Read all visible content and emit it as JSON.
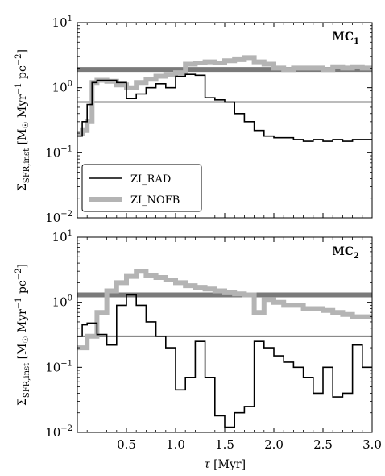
{
  "chart_data": [
    {
      "type": "line",
      "panel_label": "MC",
      "panel_label_sub": "1",
      "ylabel": "Σ",
      "ylabel_sub": "SFR,inst",
      "ylabel_units": "[M",
      "ylabel_units_rest": " Myr",
      "ylabel_exp1": "−1",
      "ylabel_pc": " pc",
      "ylabel_exp2": "−2",
      "ylabel_close": "]",
      "yscale": "log",
      "ylim": [
        0.01,
        10
      ],
      "xlim": [
        0,
        3
      ],
      "yticks": [
        {
          "value": 0.01,
          "base": "10",
          "exp": "−2"
        },
        {
          "value": 0.1,
          "base": "10",
          "exp": "−1"
        },
        {
          "value": 1,
          "base": "10",
          "exp": "0"
        },
        {
          "value": 10,
          "base": "10",
          "exp": "1"
        }
      ],
      "hlines": [
        {
          "value": 1.9,
          "color": "#7a7a7a"
        },
        {
          "value": 0.6,
          "color": "#7a7a7a"
        }
      ],
      "series": [
        {
          "name": "ZI_RAD",
          "color": "#000000",
          "x": [
            0.0,
            0.05,
            0.1,
            0.15,
            0.2,
            0.3,
            0.4,
            0.5,
            0.6,
            0.7,
            0.8,
            0.9,
            1.0,
            1.1,
            1.2,
            1.3,
            1.4,
            1.5,
            1.6,
            1.7,
            1.8,
            1.9,
            2.0,
            2.1,
            2.2,
            2.3,
            2.4,
            2.5,
            2.6,
            2.7,
            2.8,
            2.9
          ],
          "y": [
            0.18,
            0.3,
            0.55,
            1.2,
            1.3,
            1.3,
            1.2,
            0.68,
            0.8,
            1.0,
            1.15,
            1.0,
            1.5,
            1.6,
            1.55,
            0.7,
            0.65,
            0.6,
            0.4,
            0.3,
            0.22,
            0.18,
            0.17,
            0.17,
            0.16,
            0.15,
            0.16,
            0.15,
            0.16,
            0.15,
            0.16,
            0.16
          ]
        },
        {
          "name": "ZI_NOFB",
          "color": "#b4b4b4",
          "x": [
            0.0,
            0.05,
            0.1,
            0.15,
            0.2,
            0.3,
            0.4,
            0.5,
            0.6,
            0.7,
            0.8,
            0.9,
            1.0,
            1.1,
            1.2,
            1.3,
            1.4,
            1.5,
            1.6,
            1.7,
            1.8,
            1.9,
            2.0,
            2.1,
            2.2,
            2.3,
            2.4,
            2.5,
            2.6,
            2.7,
            2.8,
            2.9,
            3.0
          ],
          "y": [
            0.2,
            0.22,
            0.3,
            1.2,
            1.3,
            1.25,
            1.1,
            1.0,
            1.2,
            1.35,
            1.5,
            1.6,
            1.7,
            2.3,
            2.4,
            2.5,
            2.4,
            2.6,
            2.7,
            2.9,
            2.5,
            2.3,
            2.0,
            1.9,
            2.0,
            2.0,
            2.0,
            1.9,
            2.1,
            2.0,
            2.1,
            2.0,
            2.0
          ]
        }
      ],
      "legend": {
        "position": "lower-left",
        "items": [
          {
            "label": "ZI_RAD",
            "color": "#000000"
          },
          {
            "label": "ZI_NOFB",
            "color": "#b4b4b4"
          }
        ]
      }
    },
    {
      "type": "line",
      "panel_label": "MC",
      "panel_label_sub": "2",
      "ylabel": "Σ",
      "ylabel_sub": "SFR,inst",
      "ylabel_units": "[M",
      "ylabel_units_rest": " Myr",
      "ylabel_exp1": "−1",
      "ylabel_pc": " pc",
      "ylabel_exp2": "−2",
      "ylabel_close": "]",
      "xlabel": "τ",
      "xlabel_units": " [Myr]",
      "yscale": "log",
      "ylim": [
        0.01,
        10
      ],
      "xlim": [
        0,
        3
      ],
      "xticks": [
        "0.5",
        "1.0",
        "1.5",
        "2.0",
        "2.5",
        "3.0"
      ],
      "xtick_values": [
        0.5,
        1.0,
        1.5,
        2.0,
        2.5,
        3.0
      ],
      "yticks": [
        {
          "value": 0.01,
          "base": "10",
          "exp": "−2"
        },
        {
          "value": 0.1,
          "base": "10",
          "exp": "−1"
        },
        {
          "value": 1,
          "base": "10",
          "exp": "0"
        },
        {
          "value": 10,
          "base": "10",
          "exp": "1"
        }
      ],
      "hlines": [
        {
          "value": 1.3,
          "color": "#7a7a7a"
        },
        {
          "value": 0.3,
          "color": "#7a7a7a"
        }
      ],
      "series": [
        {
          "name": "ZI_RAD",
          "color": "#000000",
          "x": [
            0.0,
            0.05,
            0.1,
            0.2,
            0.3,
            0.4,
            0.5,
            0.6,
            0.7,
            0.8,
            0.9,
            1.0,
            1.1,
            1.2,
            1.3,
            1.4,
            1.5,
            1.6,
            1.7,
            1.8,
            1.9,
            2.0,
            2.1,
            2.2,
            2.3,
            2.4,
            2.5,
            2.6,
            2.7,
            2.8,
            2.9
          ],
          "y": [
            0.3,
            0.45,
            0.48,
            0.32,
            0.22,
            0.9,
            1.3,
            0.9,
            0.5,
            0.3,
            0.2,
            0.045,
            0.07,
            0.25,
            0.07,
            0.018,
            0.012,
            0.02,
            0.025,
            0.25,
            0.2,
            0.15,
            0.12,
            0.1,
            0.07,
            0.04,
            0.1,
            0.035,
            0.04,
            0.22,
            0.1
          ]
        },
        {
          "name": "ZI_NOFB",
          "color": "#b4b4b4",
          "x": [
            0.0,
            0.1,
            0.2,
            0.3,
            0.4,
            0.5,
            0.6,
            0.7,
            0.8,
            0.9,
            1.0,
            1.1,
            1.2,
            1.3,
            1.4,
            1.5,
            1.6,
            1.7,
            1.8,
            1.9,
            2.0,
            2.1,
            2.2,
            2.3,
            2.4,
            2.5,
            2.6,
            2.7,
            2.8,
            2.9,
            3.0
          ],
          "y": [
            0.2,
            0.3,
            0.7,
            1.5,
            2.0,
            2.5,
            3.0,
            2.6,
            2.4,
            2.2,
            2.0,
            1.8,
            1.7,
            1.6,
            1.5,
            1.4,
            1.35,
            1.3,
            0.7,
            1.1,
            1.0,
            0.9,
            0.9,
            0.8,
            0.8,
            0.75,
            0.7,
            0.65,
            0.6,
            0.6,
            0.6
          ]
        }
      ]
    }
  ]
}
